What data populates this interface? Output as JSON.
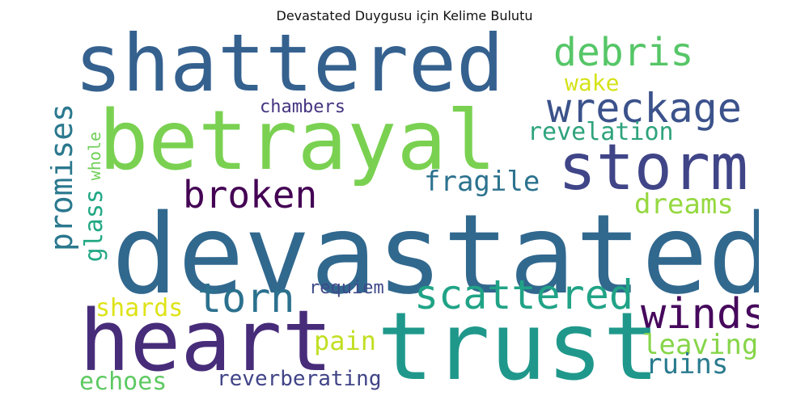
{
  "title": "Devastated Duygusu için Kelime Bulutu",
  "chart_data": {
    "type": "wordcloud",
    "title": "Devastated Duygusu için Kelime Bulutu",
    "background": "#ffffff",
    "words": [
      {
        "key": "shattered",
        "text": "shattered",
        "color": "#35618f",
        "orientation": "horizontal"
      },
      {
        "key": "betrayal",
        "text": "betrayal",
        "color": "#7ad151",
        "orientation": "horizontal"
      },
      {
        "key": "debris",
        "text": "debris",
        "color": "#56c667",
        "orientation": "horizontal"
      },
      {
        "key": "wake",
        "text": "wake",
        "color": "#d5e21a",
        "orientation": "horizontal"
      },
      {
        "key": "wreckage",
        "text": "wreckage",
        "color": "#3b528b",
        "orientation": "horizontal"
      },
      {
        "key": "chambers",
        "text": "chambers",
        "color": "#463480",
        "orientation": "horizontal"
      },
      {
        "key": "revelation",
        "text": "revelation",
        "color": "#2ea37d",
        "orientation": "horizontal"
      },
      {
        "key": "storm",
        "text": "storm",
        "color": "#404588",
        "orientation": "horizontal"
      },
      {
        "key": "whole",
        "text": "whole",
        "color": "#70cf57",
        "orientation": "vertical"
      },
      {
        "key": "promises",
        "text": "promises",
        "color": "#2a788e",
        "orientation": "vertical"
      },
      {
        "key": "fragile",
        "text": "fragile",
        "color": "#2c728e",
        "orientation": "horizontal"
      },
      {
        "key": "broken",
        "text": "broken",
        "color": "#440154",
        "orientation": "horizontal"
      },
      {
        "key": "glass",
        "text": "glass",
        "color": "#22a884",
        "orientation": "vertical"
      },
      {
        "key": "dreams",
        "text": "dreams",
        "color": "#95d840",
        "orientation": "horizontal"
      },
      {
        "key": "devastated",
        "text": "devastated",
        "color": "#31688e",
        "orientation": "horizontal"
      },
      {
        "key": "requiem",
        "text": "requiem",
        "color": "#3e4a89",
        "orientation": "horizontal"
      },
      {
        "key": "torn",
        "text": "torn",
        "color": "#2c718e",
        "orientation": "horizontal"
      },
      {
        "key": "scattered",
        "text": "scattered",
        "color": "#20a386",
        "orientation": "horizontal"
      },
      {
        "key": "shards",
        "text": "shards",
        "color": "#dde318",
        "orientation": "horizontal"
      },
      {
        "key": "winds",
        "text": "winds",
        "color": "#46085c",
        "orientation": "horizontal"
      },
      {
        "key": "heart",
        "text": "heart",
        "color": "#472c7a",
        "orientation": "horizontal"
      },
      {
        "key": "trust",
        "text": "trust",
        "color": "#1f988b",
        "orientation": "horizontal"
      },
      {
        "key": "pain",
        "text": "pain",
        "color": "#c2df23",
        "orientation": "horizontal"
      },
      {
        "key": "leaving",
        "text": "leaving",
        "color": "#86d549",
        "orientation": "horizontal"
      },
      {
        "key": "ruins",
        "text": "ruins",
        "color": "#297b8e",
        "orientation": "horizontal"
      },
      {
        "key": "echoes",
        "text": "echoes",
        "color": "#5ec962",
        "orientation": "horizontal"
      },
      {
        "key": "reverberating",
        "text": "reverberating",
        "color": "#414487",
        "orientation": "horizontal"
      }
    ]
  }
}
